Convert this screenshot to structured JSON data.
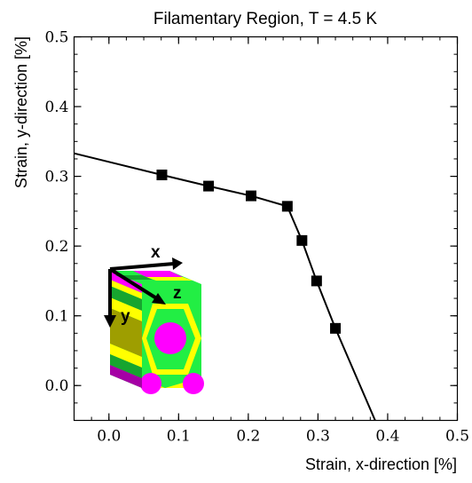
{
  "chart_data": {
    "type": "line",
    "title": "Filamentary Region, T = 4.5 K",
    "xlabel": "Strain, x-direction [%]",
    "ylabel": "Strain, y-direction [%]",
    "xlim": [
      -0.05,
      0.5
    ],
    "ylim": [
      -0.05,
      0.5
    ],
    "xticks": [
      0.0,
      0.1,
      0.2,
      0.3,
      0.4,
      0.5
    ],
    "yticks": [
      0.0,
      0.1,
      0.2,
      0.3,
      0.4,
      0.5
    ],
    "xtick_labels": [
      "0.0",
      "0.1",
      "0.2",
      "0.3",
      "0.4",
      "0.5"
    ],
    "ytick_labels": [
      "0.0",
      "0.1",
      "0.2",
      "0.3",
      "0.4",
      "0.5"
    ],
    "grid": false,
    "series": [
      {
        "line": {
          "x": [
            -0.05,
            0.076,
            0.143,
            0.204,
            0.256,
            0.277,
            0.298,
            0.325,
            0.382
          ],
          "y": [
            0.333,
            0.302,
            0.286,
            0.272,
            0.257,
            0.208,
            0.15,
            0.082,
            -0.05
          ]
        },
        "markers": {
          "x": [
            0.076,
            0.143,
            0.204,
            0.256,
            0.277,
            0.298,
            0.325
          ],
          "y": [
            0.302,
            0.286,
            0.272,
            0.257,
            0.208,
            0.15,
            0.082
          ]
        },
        "color": "#000000",
        "marker": "square"
      }
    ],
    "inset": {
      "axis_labels": [
        "x",
        "y",
        "z"
      ],
      "colors": {
        "green": "#22ee44",
        "dark_green": "#17a52f",
        "yellow": "#ffff00",
        "magenta": "#ff00ff",
        "olive": "#9e9e00",
        "purple": "#a500a5"
      }
    }
  }
}
